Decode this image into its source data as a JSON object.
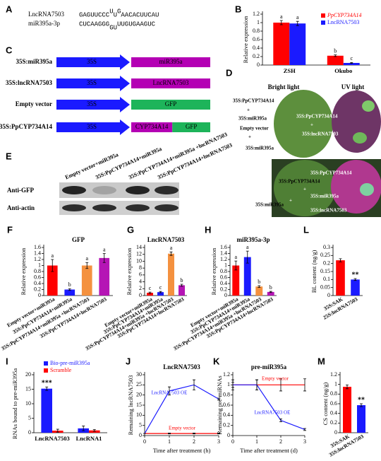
{
  "panels": {
    "A": {
      "label": "A",
      "lnc_name": "LncRNA7503",
      "lnc_parts": [
        "GAGUUCCC",
        "U",
        "U",
        "G",
        "AACACUUCAU"
      ],
      "mir_name": "miR395a-3p",
      "mir_parts": [
        "CUCAAGGG",
        "G",
        "U",
        "UUGUGAAGUC"
      ]
    },
    "C": {
      "label": "C",
      "rows": [
        {
          "name": "35S:miR395a",
          "promoter": "35S",
          "parts": [
            {
              "text": "miR395a",
              "color": "#b400b4"
            }
          ]
        },
        {
          "name": "35S:lncRNA7503",
          "promoter": "35S",
          "parts": [
            {
              "text": "LncRNA7503",
              "color": "#b400b4"
            }
          ]
        },
        {
          "name": "Empty vector",
          "promoter": "35S",
          "parts": [
            {
              "text": "GFP",
              "color": "#1db45a"
            }
          ]
        },
        {
          "name": "35S:PpCYP734A14",
          "promoter": "35S",
          "parts": [
            {
              "text": "CYP734A14",
              "color": "#b400b4"
            },
            {
              "text": "GFP",
              "color": "#1db45a"
            }
          ]
        }
      ]
    },
    "D": {
      "label": "D",
      "bright": "Bright light",
      "uv": "UV light",
      "labels": [
        "35S:PpCYP734A14",
        "+",
        "35S:miR395a",
        "Empty vector",
        "+",
        "35S:miR395a",
        "35S:PpCYP734A14",
        "+",
        "35S:lncRNA7503",
        "35S:PpCYP734A14",
        "35S:PpCYP734A14",
        "+",
        "35S:miR395a",
        "35S:miR395a",
        "+",
        "35S:lncRNA7503"
      ]
    },
    "E": {
      "label": "E",
      "lanes": [
        "Empty vector+miR395a",
        "35S:PpCYP734A14+miR395a",
        "35S:PpCYP734A14+miR395a +lncRNA7503",
        "35S:PpCYP734A14+lncRNA7503"
      ],
      "rows": [
        "Anti-GFP",
        "Anti-actin"
      ]
    }
  },
  "chart_data": [
    {
      "type": "bar",
      "label": "B",
      "y_label": "Relative expression",
      "categories": [
        "ZSH",
        "Okubo"
      ],
      "series": [
        {
          "name": "PpCYP734A14",
          "color": "#ff0000",
          "values": [
            1.0,
            0.22
          ],
          "errors": [
            0.05,
            0.02
          ],
          "letters": [
            "a",
            "b"
          ]
        },
        {
          "name": "LncRNA7503",
          "color": "#1a1aff",
          "values": [
            0.98,
            0.05
          ],
          "errors": [
            0.05,
            0.01
          ],
          "letters": [
            "a",
            "c"
          ]
        }
      ],
      "ylim": [
        0,
        1.2
      ],
      "yticks": [
        0,
        0.2,
        0.4,
        0.6,
        0.8,
        1,
        1.2
      ],
      "legend": "upper right"
    },
    {
      "type": "bar",
      "label": "F",
      "title": "GFP",
      "y_label": "Relative expression",
      "categories": [
        "Empty vector+miR395a",
        "35S:PpCYP734A14+miR395a",
        "35S:PpCYP734A14+miR395a +lncRNA7503",
        "35S:PpCYP734A14+lncRNA7503"
      ],
      "values": [
        1.0,
        0.2,
        1.0,
        1.25
      ],
      "errors": [
        0.2,
        0.03,
        0.1,
        0.15
      ],
      "letters": [
        "a",
        "b",
        "a",
        "a"
      ],
      "colors": [
        "#ff0000",
        "#1a1aff",
        "#f4913f",
        "#b515b5"
      ],
      "ylim": [
        0,
        1.6
      ],
      "yticks": [
        0,
        0.2,
        0.4,
        0.6,
        0.8,
        1,
        1.2,
        1.4,
        1.6
      ]
    },
    {
      "type": "bar",
      "label": "G",
      "title": "LncRNA7503",
      "y_label": "Relative expression",
      "categories": [
        "Empty vector+miR395a",
        "35S:PpCYP734A14+miR395a",
        "35S:PpCYP734A14+miR395a +lncRNA7503",
        "35S:PpCYP734A14+lncRNA7503"
      ],
      "values": [
        0.8,
        1.0,
        12.2,
        3.0
      ],
      "errors": [
        0.2,
        0.2,
        0.5,
        0.3
      ],
      "letters": [
        "c",
        "c",
        "a",
        "b"
      ],
      "colors": [
        "#ff0000",
        "#1a1aff",
        "#f4913f",
        "#b515b5"
      ],
      "ylim": [
        0,
        14
      ],
      "yticks": [
        0,
        2,
        4,
        6,
        8,
        10,
        12,
        14
      ]
    },
    {
      "type": "bar",
      "label": "H",
      "title": "miR395a-3p",
      "y_label": "Relative expression",
      "categories": [
        "Empty vector+miR395a",
        "35S:PpCYP734A14+miR395a",
        "35S:PpCYP734A14+miR395a +lncRNA7503",
        "35S:PpCYP734A14+lncRNA7503"
      ],
      "values": [
        1.0,
        1.28,
        0.3,
        0.12
      ],
      "errors": [
        0.15,
        0.2,
        0.03,
        0.02
      ],
      "letters": [
        "a",
        "a",
        "b",
        "b"
      ],
      "colors": [
        "#ff0000",
        "#1a1aff",
        "#f4913f",
        "#b515b5"
      ],
      "ylim": [
        0,
        1.6
      ],
      "yticks": [
        0,
        0.2,
        0.4,
        0.6,
        0.8,
        1,
        1.2,
        1.4,
        1.6
      ]
    },
    {
      "type": "bar",
      "label": "L",
      "y_label": "BL content (ng/g)",
      "categories": [
        "35S:SAK",
        "25S:lncRNA7503"
      ],
      "values": [
        0.22,
        0.1
      ],
      "errors": [
        0.01,
        0.006
      ],
      "colors": [
        "#ff0000",
        "#1a1aff"
      ],
      "annotation": "**",
      "ylim": [
        0,
        0.3
      ],
      "yticks": [
        0,
        0.05,
        0.1,
        0.15,
        0.2,
        0.25,
        0.3
      ]
    },
    {
      "type": "bar",
      "label": "I",
      "y_label": "RNAs bound to pre-miR395a",
      "categories": [
        "LncRNA7503",
        "LncRNA1"
      ],
      "series": [
        {
          "name": "Bio-pre-miR395a",
          "color": "#1a1aff",
          "values": [
            15.2,
            1.5
          ],
          "errors": [
            0.6,
            0.8
          ]
        },
        {
          "name": "Scramble",
          "color": "#ff0000",
          "values": [
            0.7,
            0.8
          ],
          "errors": [
            0.5,
            0.3
          ]
        }
      ],
      "annotation": "***",
      "ylim": [
        0,
        20
      ],
      "yticks": [
        0,
        5,
        10,
        15,
        20
      ],
      "legend": "upper left"
    },
    {
      "type": "line",
      "label": "J",
      "title": "LncRNA7503",
      "x_label": "Time after treatment (h)",
      "y_label": "Remaining lncRNA7503",
      "x": [
        0,
        1,
        2,
        3
      ],
      "series": [
        {
          "name": "LncRNA7503 OE",
          "color": "#1a1aff",
          "values": [
            1,
            22,
            25,
            18
          ],
          "errors": [
            0,
            2,
            2.5,
            0.5
          ]
        },
        {
          "name": "Empty vector",
          "color": "#ff0000",
          "values": [
            1,
            1,
            1,
            1
          ],
          "errors": [
            0,
            0.2,
            0.2,
            0.2
          ]
        }
      ],
      "xlim": [
        0,
        3
      ],
      "xticks": [
        0,
        1,
        2,
        3
      ],
      "ylim": [
        0,
        30
      ],
      "yticks": [
        0,
        5,
        10,
        15,
        20,
        25,
        30
      ]
    },
    {
      "type": "line",
      "label": "K",
      "title": "pre-miR395a",
      "x_label": "Time after treatment (d)",
      "y_label": "Remaining pre-miRNAs",
      "x": [
        0,
        1,
        2,
        3
      ],
      "series": [
        {
          "name": "Empty vector",
          "color": "#ff0000",
          "values": [
            1,
            1,
            1,
            1
          ],
          "errors": [
            0.1,
            0.1,
            0.12,
            0.12
          ]
        },
        {
          "name": "LncRNA7503 OE",
          "color": "#1a1aff",
          "values": [
            1,
            1,
            0.3,
            0.12
          ],
          "errors": [
            0.05,
            0.1,
            0.03,
            0.02
          ]
        }
      ],
      "xlim": [
        0,
        3
      ],
      "xticks": [
        0,
        1,
        2,
        3
      ],
      "ylim": [
        0,
        1.2
      ],
      "yticks": [
        0,
        0.2,
        0.4,
        0.6,
        0.8,
        1,
        1.2
      ]
    },
    {
      "type": "bar",
      "label": "M",
      "y_label": "CS content (ng/g)",
      "categories": [
        "35S:SAK",
        "35S:lncRNA7503"
      ],
      "values": [
        0.95,
        0.57
      ],
      "errors": [
        0.04,
        0.03
      ],
      "colors": [
        "#ff0000",
        "#1a1aff"
      ],
      "annotation": "**",
      "ylim": [
        0,
        1.2
      ],
      "yticks": [
        0,
        0.2,
        0.4,
        0.6,
        0.8,
        1,
        1.2
      ]
    }
  ]
}
